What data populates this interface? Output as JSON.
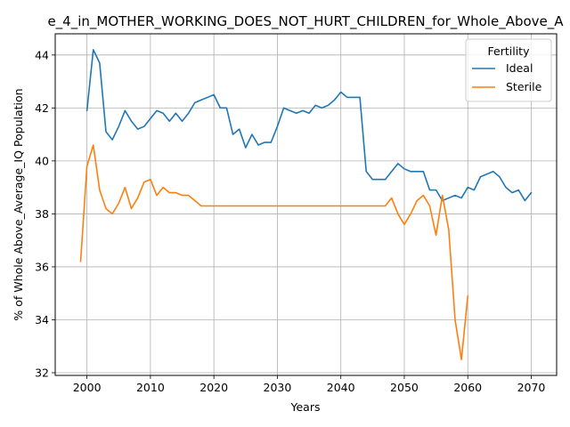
{
  "chart_data": {
    "type": "line",
    "title": "e_4_in_MOTHER_WORKING_DOES_NOT_HURT_CHILDREN_for_Whole_Above_A",
    "xlabel": "Years",
    "ylabel": "% of Whole Above_Average_IQ Population",
    "xlim": [
      1995,
      2074
    ],
    "ylim": [
      31.9,
      44.8
    ],
    "xticks": [
      2000,
      2010,
      2020,
      2030,
      2040,
      2050,
      2060,
      2070
    ],
    "yticks": [
      32,
      34,
      36,
      38,
      40,
      42,
      44
    ],
    "grid": true,
    "legend": {
      "title": "Fertility",
      "placement": "top-right"
    },
    "series": [
      {
        "name": "Ideal",
        "color": "#1f77b4",
        "x": [
          2000,
          2001,
          2002,
          2003,
          2004,
          2005,
          2006,
          2007,
          2008,
          2009,
          2010,
          2011,
          2012,
          2013,
          2014,
          2015,
          2016,
          2017,
          2018,
          2019,
          2020,
          2021,
          2022,
          2023,
          2024,
          2025,
          2026,
          2027,
          2028,
          2029,
          2030,
          2031,
          2032,
          2033,
          2034,
          2035,
          2036,
          2037,
          2038,
          2039,
          2040,
          2041,
          2042,
          2043,
          2044,
          2045,
          2046,
          2047,
          2048,
          2049,
          2050,
          2051,
          2052,
          2053,
          2054,
          2055,
          2056,
          2057,
          2058,
          2059,
          2060,
          2061,
          2062,
          2063,
          2064,
          2065,
          2066,
          2067,
          2068,
          2069,
          2070
        ],
        "values": [
          41.9,
          44.2,
          43.7,
          41.1,
          40.8,
          41.3,
          41.9,
          41.5,
          41.2,
          41.3,
          41.6,
          41.9,
          41.8,
          41.5,
          41.8,
          41.5,
          41.8,
          42.2,
          42.3,
          42.4,
          42.5,
          42.0,
          42.0,
          41.0,
          41.2,
          40.5,
          41.0,
          40.6,
          40.7,
          40.7,
          41.3,
          42.0,
          41.9,
          41.8,
          41.9,
          41.8,
          42.1,
          42.0,
          42.1,
          42.3,
          42.6,
          42.4,
          42.4,
          42.4,
          39.6,
          39.3,
          39.3,
          39.3,
          39.6,
          39.9,
          39.7,
          39.6,
          39.6,
          39.6,
          38.9,
          38.9,
          38.5,
          38.6,
          38.7,
          38.6,
          39.0,
          38.9,
          39.4,
          39.5,
          39.6,
          39.4,
          39.0,
          38.8,
          38.9,
          38.5,
          38.8
        ]
      },
      {
        "name": "Sterile",
        "color": "#ff7f0e",
        "x": [
          1999,
          2000,
          2001,
          2002,
          2003,
          2004,
          2005,
          2006,
          2007,
          2008,
          2009,
          2010,
          2011,
          2012,
          2013,
          2014,
          2015,
          2016,
          2017,
          2018,
          2019,
          2020,
          2021,
          2022,
          2023,
          2024,
          2025,
          2026,
          2027,
          2028,
          2029,
          2030,
          2031,
          2032,
          2033,
          2034,
          2035,
          2036,
          2037,
          2038,
          2039,
          2040,
          2041,
          2042,
          2043,
          2044,
          2045,
          2046,
          2047,
          2048,
          2049,
          2050,
          2051,
          2052,
          2053,
          2054,
          2055,
          2056,
          2057,
          2058,
          2059,
          2060
        ],
        "values": [
          36.2,
          39.8,
          40.6,
          38.9,
          38.2,
          38.0,
          38.4,
          39.0,
          38.2,
          38.6,
          39.2,
          39.3,
          38.7,
          39.0,
          38.8,
          38.8,
          38.7,
          38.7,
          38.5,
          38.3,
          38.3,
          38.3,
          38.3,
          38.3,
          38.3,
          38.3,
          38.3,
          38.3,
          38.3,
          38.3,
          38.3,
          38.3,
          38.3,
          38.3,
          38.3,
          38.3,
          38.3,
          38.3,
          38.3,
          38.3,
          38.3,
          38.3,
          38.3,
          38.3,
          38.3,
          38.3,
          38.3,
          38.3,
          38.3,
          38.6,
          38.0,
          37.6,
          38.0,
          38.5,
          38.7,
          38.3,
          37.2,
          38.7,
          37.4,
          34.0,
          32.5,
          34.9
        ]
      }
    ]
  }
}
